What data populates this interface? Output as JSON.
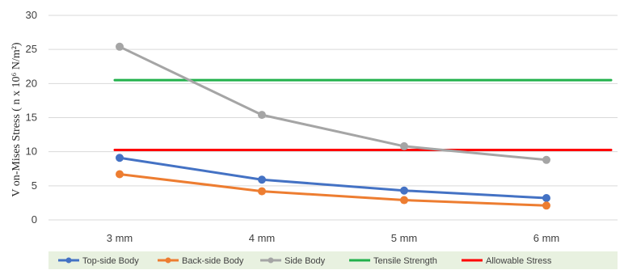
{
  "chart_data": {
    "type": "line",
    "categories": [
      "3 mm",
      "4 mm",
      "5 mm",
      "6 mm"
    ],
    "ylabel": "V on-Mises Stress ( n x 10⁶ N/m²)",
    "ylim": [
      0,
      30
    ],
    "yticks": [
      0,
      5,
      10,
      15,
      20,
      25,
      30
    ],
    "grid": "horizontal",
    "legend_position": "bottom",
    "series": [
      {
        "name": "Top-side Body",
        "color": "#4472C4",
        "values": [
          9.1,
          5.9,
          4.3,
          3.2
        ],
        "markers": true
      },
      {
        "name": "Back-side Body",
        "color": "#ED7D31",
        "values": [
          6.7,
          4.2,
          2.9,
          2.1
        ],
        "markers": true
      },
      {
        "name": "Side Body",
        "color": "#A5A5A5",
        "values": [
          25.4,
          15.4,
          10.8,
          8.8
        ],
        "markers": true
      },
      {
        "name": "Tensile Strength",
        "color": "#22B14C",
        "values": [
          20.5,
          20.5,
          20.5,
          20.5
        ],
        "markers": false
      },
      {
        "name": "Allowable Stress",
        "color": "#FF0000",
        "values": [
          10.25,
          10.25,
          10.25,
          10.25
        ],
        "markers": false
      }
    ]
  }
}
